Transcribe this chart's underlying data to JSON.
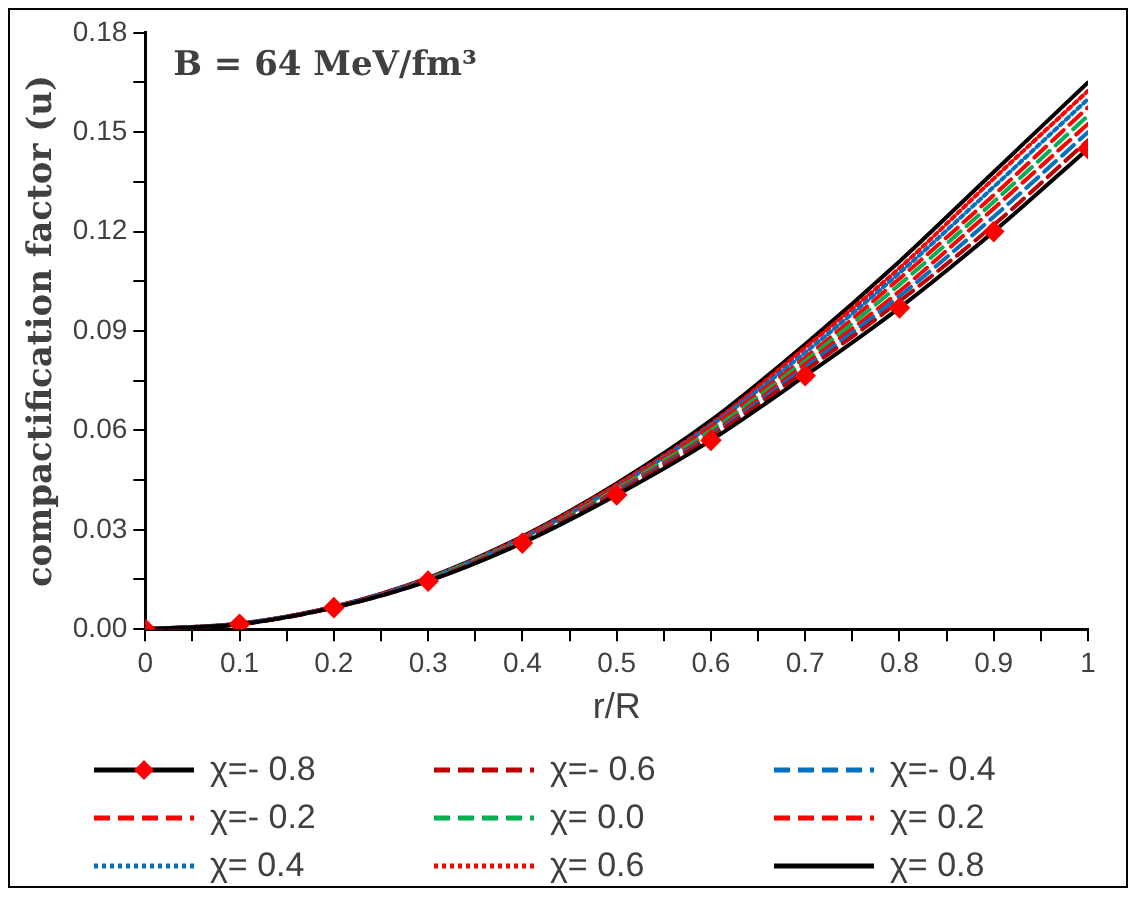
{
  "chart_data": {
    "type": "line",
    "xlabel": "r/R",
    "ylabel": "compactification factor (u)",
    "annotations": [
      "B = 64 MeV/fm³"
    ],
    "x": [
      0,
      0.1,
      0.2,
      0.3,
      0.4,
      0.5,
      0.6,
      0.7,
      0.8,
      0.9,
      1
    ],
    "xlim": [
      0,
      1
    ],
    "ylim": [
      0,
      0.18
    ],
    "xticks": [
      0,
      {
        "value": 0.05,
        "label": null
      },
      0.1,
      {
        "value": 0.15,
        "label": null
      },
      0.2,
      {
        "value": 0.25,
        "label": null
      },
      0.3,
      {
        "value": 0.35,
        "label": null
      },
      0.4,
      {
        "value": 0.45,
        "label": null
      },
      0.5,
      {
        "value": 0.55,
        "label": null
      },
      0.6,
      {
        "value": 0.65,
        "label": null
      },
      0.7,
      {
        "value": 0.75,
        "label": null
      },
      0.8,
      {
        "value": 0.85,
        "label": null
      },
      0.9,
      {
        "value": 0.95,
        "label": null
      },
      1
    ],
    "yticks": [
      {
        "value": 0,
        "label": "0.00"
      },
      {
        "value": 0.015,
        "label": null
      },
      0.03,
      {
        "value": 0.045,
        "label": null
      },
      0.06,
      {
        "value": 0.075,
        "label": null
      },
      0.09,
      {
        "value": 0.105,
        "label": null
      },
      0.12,
      {
        "value": 0.135,
        "label": null
      },
      0.15,
      {
        "value": 0.165,
        "label": null
      },
      0.18
    ],
    "grid": false,
    "legend": "bottom",
    "marker": "none",
    "series": [
      {
        "name": "χ=- 0.8",
        "color": "#000000",
        "colors": [
          "#ff0000",
          "#ff0000",
          "#ff0000",
          "#ff0000",
          "#ff0000",
          "#ff0000",
          "#ff0000",
          "#ff0000",
          "#ff0000",
          "#ff0000",
          "#ff0000"
        ],
        "marker": "diamond",
        "line_style": "solid",
        "values": [
          0,
          0.0015,
          0.0065,
          0.0145,
          0.026,
          0.0405,
          0.057,
          0.0765,
          0.097,
          0.12,
          0.145
        ]
      },
      {
        "name": "χ=- 0.6",
        "color": "#c00000",
        "line_style": "dashed",
        "values": [
          0,
          0.0015,
          0.0065,
          0.0146,
          0.0263,
          0.041,
          0.058,
          0.078,
          0.099,
          0.122,
          0.1475
        ]
      },
      {
        "name": "χ=- 0.4",
        "color": "#0070c0",
        "line_style": "dashed",
        "values": [
          0,
          0.0016,
          0.0066,
          0.0148,
          0.0265,
          0.0414,
          0.0585,
          0.079,
          0.1005,
          0.1245,
          0.15
        ]
      },
      {
        "name": "χ=- 0.2",
        "color": "#ff0000",
        "line_style": "dashed",
        "values": [
          0,
          0.0016,
          0.0066,
          0.0149,
          0.0268,
          0.0418,
          0.059,
          0.08,
          0.102,
          0.127,
          0.1525
        ]
      },
      {
        "name": "χ= 0.0",
        "color": "#00b050",
        "line_style": "dashed",
        "values": [
          null,
          null,
          null,
          0.015,
          0.027,
          0.0423,
          0.06,
          0.081,
          0.104,
          0.129,
          0.155
        ]
      },
      {
        "name": "χ= 0.2",
        "color": "#ff0000",
        "line_style": "dashed",
        "values": [
          0,
          0.0016,
          0.0067,
          0.0151,
          0.0273,
          0.0427,
          0.061,
          0.082,
          0.1058,
          0.131,
          0.1575
        ]
      },
      {
        "name": "χ= 0.4",
        "color": "#0070c0",
        "line_style": "dotted",
        "values": [
          0,
          0.0017,
          0.0067,
          0.0153,
          0.0275,
          0.043,
          0.0615,
          0.0835,
          0.1075,
          0.1335,
          0.16
        ]
      },
      {
        "name": "χ= 0.6",
        "color": "#ff0000",
        "line_style": "dotted",
        "values": [
          0,
          0.0017,
          0.0068,
          0.0154,
          0.0278,
          0.0436,
          0.062,
          0.085,
          0.109,
          0.136,
          0.1625
        ]
      },
      {
        "name": "χ= 0.8",
        "color": "#000000",
        "line_style": "solid",
        "values": [
          0,
          0.0017,
          0.0068,
          0.0155,
          0.028,
          0.044,
          0.063,
          0.086,
          0.111,
          0.138,
          0.165
        ]
      }
    ]
  }
}
